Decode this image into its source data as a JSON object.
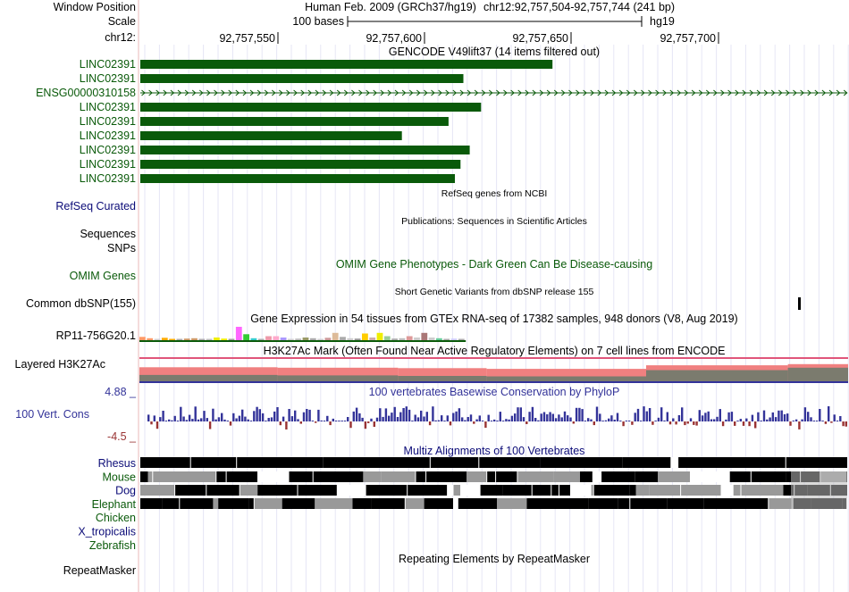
{
  "header": {
    "window_position_label": "Window Position",
    "scale_label": "Scale",
    "chrom_label": "chr12:",
    "assembly_title": "Human Feb. 2009 (GRCh37/hg19)",
    "position": "chr12:92,757,504-92,757,744 (241 bp)",
    "scale_text": "100 bases",
    "scale_db": "hg19",
    "ruler_ticks": [
      "92,757,550",
      "92,757,600",
      "92,757,650",
      "92,757,700"
    ]
  },
  "gencode": {
    "title": "GENCODE V49lift37 (14 items filtered out)",
    "color": "#0a5a0a",
    "items": [
      {
        "label": "LINC02391",
        "end_fraction": 0.583
      },
      {
        "label": "LINC02391",
        "end_fraction": 0.457
      },
      {
        "label": "ENSG00000310158",
        "end_fraction": 1.0,
        "intron": true
      },
      {
        "label": "LINC02391",
        "end_fraction": 0.482
      },
      {
        "label": "LINC02391",
        "end_fraction": 0.436
      },
      {
        "label": "LINC02391",
        "end_fraction": 0.37
      },
      {
        "label": "LINC02391",
        "end_fraction": 0.466
      },
      {
        "label": "LINC02391",
        "end_fraction": 0.453
      },
      {
        "label": "LINC02391",
        "end_fraction": 0.445
      }
    ]
  },
  "refseq": {
    "title": "RefSeq genes from NCBI",
    "label": "RefSeq Curated",
    "color": "#0c0c78"
  },
  "publications": {
    "title": "Publications: Sequences in Scientific Articles",
    "label1": "Sequences",
    "label2": "SNPs"
  },
  "omim": {
    "title": "OMIM Gene Phenotypes - Dark Green Can Be Disease-causing",
    "label": "OMIM Genes",
    "color": "#0a5a0a"
  },
  "dbsnp": {
    "title": "Short Genetic Variants from dbSNP release 155",
    "label": "Common dbSNP(155)"
  },
  "gtex": {
    "title": "Gene Expression in 54 tissues from GTEx RNA-seq of 17382 samples, 948 donors (V8, Aug 2019)",
    "gene_label": "RP11-756G20.1",
    "colors": [
      "#ff9966",
      "#ff9966",
      "#cccccc",
      "#ffaa00",
      "#ffaa00",
      "#aaaaaa",
      "#cc9966",
      "#cc9966",
      "#aaaaaa",
      "#bbbbbb",
      "#eeee00",
      "#eeee00",
      "#999999",
      "#ff66ff",
      "#33cc33",
      "#33cccc",
      "#aaaaaa",
      "#ee99aa",
      "#ffaacc",
      "#aa99ff",
      "#cccccc",
      "#bbbbbb",
      "#999966",
      "#aaaaaa",
      "#cccccc",
      "#cc9999",
      "#ddbb99",
      "#aaaaaa",
      "#cccccc",
      "#999999",
      "#ffcc00",
      "#ccaaaa",
      "#eeee00",
      "#99cc99",
      "#aaaaaa",
      "#bbbbbb",
      "#dd9999",
      "#cccccc",
      "#aa7777",
      "#cccccc",
      "#66cc99",
      "#aaaaaa",
      "#ccccff",
      "#aaaaaa"
    ],
    "values": [
      0.25,
      0.15,
      0.1,
      0.18,
      0.1,
      0.08,
      0.12,
      0.15,
      0.1,
      0.08,
      0.2,
      0.12,
      0.1,
      1.0,
      0.45,
      0.15,
      0.1,
      0.3,
      0.3,
      0.2,
      0.1,
      0.12,
      0.2,
      0.15,
      0.1,
      0.18,
      0.55,
      0.25,
      0.15,
      0.12,
      0.5,
      0.2,
      0.55,
      0.3,
      0.12,
      0.15,
      0.3,
      0.2,
      0.55,
      0.2,
      0.15,
      0.1,
      0.12,
      0.1
    ]
  },
  "h3k27ac": {
    "title": "H3K27Ac Mark (Often Found Near Active Regulatory Elements) on 7 cell lines from ENCODE",
    "label": "Layered H3K27Ac",
    "segments": [
      {
        "start": 0.0,
        "end": 0.195,
        "pink": 0.62,
        "gray": 0.3
      },
      {
        "start": 0.195,
        "end": 0.365,
        "pink": 0.6,
        "gray": 0.28
      },
      {
        "start": 0.365,
        "end": 0.49,
        "pink": 0.58,
        "gray": 0.26
      },
      {
        "start": 0.49,
        "end": 0.715,
        "pink": 0.55,
        "gray": 0.24
      },
      {
        "start": 0.715,
        "end": 0.915,
        "pink": 0.7,
        "gray": 0.5
      },
      {
        "start": 0.915,
        "end": 1.0,
        "pink": 0.75,
        "gray": 0.6
      }
    ]
  },
  "conservation": {
    "title": "100 vertebrates Basewise Conservation by PhyloP",
    "label": "100 Vert. Cons",
    "ymax": "4.88 _",
    "ymin": "-4.5 _",
    "pos_color": "#333399",
    "neg_color": "#993333"
  },
  "multiz": {
    "title": "Multiz Alignments of 100 Vertebrates",
    "species": [
      {
        "name": "Rhesus",
        "color": "#0c0c78"
      },
      {
        "name": "Mouse",
        "color": "#0a5a0a"
      },
      {
        "name": "Dog",
        "color": "#0c0c78"
      },
      {
        "name": "Elephant",
        "color": "#0a5a0a"
      },
      {
        "name": "Chicken",
        "color": "#0a5a0a"
      },
      {
        "name": "X_tropicalis",
        "color": "#0c0c78"
      },
      {
        "name": "Zebrafish",
        "color": "#0a5a0a"
      }
    ]
  },
  "repeatmasker": {
    "title": "Repeating Elements by RepeatMasker",
    "label": "RepeatMasker"
  }
}
